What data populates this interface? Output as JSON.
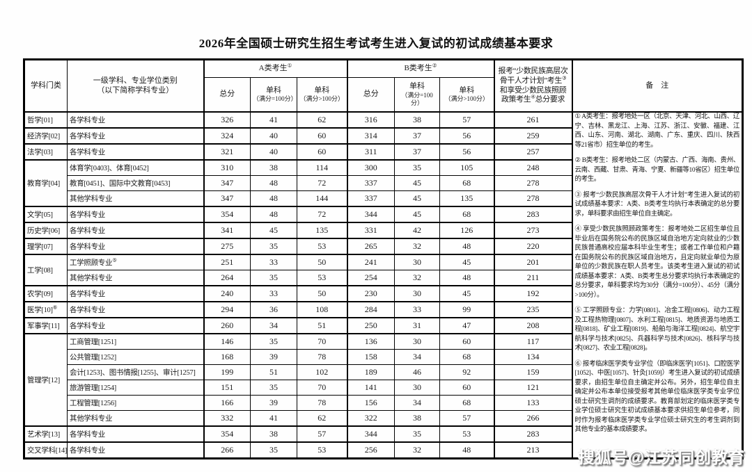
{
  "title": "2026年全国硕士研究生招生考试考生进入复试的初试成绩基本要求",
  "watermark": "搜狐号@江苏同创教育",
  "table": {
    "headers": {
      "category": "学科门类",
      "discipline_l1": "一级学科、专业学位类别",
      "discipline_l2": "（以下简称学科专业）",
      "group_a": "A类考生",
      "group_a_sup": "①",
      "group_b": "B类考生",
      "group_b_sup": "②",
      "total": "总分",
      "single": "单科",
      "single_eq_sub": "（满分=100分）",
      "single_gt_sub": "（满分>100分）",
      "minority_p1": "报考“少数民族高层次骨干人才计划”考生",
      "minority_s1": "③",
      "minority_p2": "和享受少数民族照顾政策考生",
      "minority_s2": "④",
      "minority_p3": "总分要求",
      "remarks": "备　注"
    },
    "groups": [
      {
        "category": "哲学[01]",
        "rows": [
          {
            "major": "各学科专业",
            "values": [
              326,
              41,
              62,
              316,
              38,
              57,
              261
            ]
          }
        ]
      },
      {
        "category": "经济学[02]",
        "rows": [
          {
            "major": "各学科专业",
            "values": [
              324,
              40,
              60,
              314,
              37,
              56,
              259
            ]
          }
        ]
      },
      {
        "category": "法学[03]",
        "rows": [
          {
            "major": "各学科专业",
            "values": [
              321,
              40,
              60,
              311,
              37,
              56,
              257
            ]
          }
        ]
      },
      {
        "category": "教育学[04]",
        "rows": [
          {
            "major": "体育学[0403]、体育[0452]",
            "values": [
              310,
              38,
              114,
              300,
              35,
              105,
              248
            ]
          },
          {
            "major": "教育[0451]、国际中文教育[0453]",
            "values": [
              347,
              48,
              72,
              337,
              45,
              68,
              278
            ]
          },
          {
            "major": "其他学科专业",
            "values": [
              347,
              48,
              144,
              337,
              45,
              135,
              278
            ]
          }
        ]
      },
      {
        "category": "文学[05]",
        "rows": [
          {
            "major": "各学科专业",
            "values": [
              354,
              48,
              72,
              344,
              45,
              68,
              283
            ]
          }
        ]
      },
      {
        "category": "历史学[06]",
        "rows": [
          {
            "major": "各学科专业",
            "values": [
              341,
              45,
              135,
              331,
              42,
              126,
              273
            ]
          }
        ]
      },
      {
        "category": "理学[07]",
        "rows": [
          {
            "major": "各学科专业",
            "values": [
              275,
              35,
              53,
              265,
              32,
              48,
              220
            ]
          }
        ]
      },
      {
        "category": "工学[08]",
        "rows": [
          {
            "major": "工学照顾专业",
            "major_sup": "⑤",
            "values": [
              251,
              33,
              50,
              241,
              30,
              45,
              201
            ]
          },
          {
            "major": "其他学科专业",
            "values": [
              264,
              35,
              53,
              254,
              32,
              48,
              211
            ]
          }
        ]
      },
      {
        "category": "农学[09]",
        "rows": [
          {
            "major": "各学科专业",
            "values": [
              240,
              33,
              50,
              230,
              30,
              45,
              192
            ]
          }
        ]
      },
      {
        "category": "医学[10]",
        "category_sup": "⑥",
        "rows": [
          {
            "major": "各学科专业",
            "values": [
              294,
              36,
              108,
              284,
              33,
              99,
              235
            ]
          }
        ]
      },
      {
        "category": "军事学[11]",
        "rows": [
          {
            "major": "各学科专业",
            "values": [
              260,
              34,
              51,
              250,
              31,
              47,
              208
            ]
          }
        ]
      },
      {
        "category": "管理学[12]",
        "rows": [
          {
            "major": "工商管理[1251]",
            "values": [
              146,
              35,
              70,
              136,
              30,
              60,
              117
            ]
          },
          {
            "major": "公共管理[1252]",
            "values": [
              168,
              39,
              78,
              158,
              34,
              68,
              134
            ]
          },
          {
            "major": "会计[1253]、图书情报[1255]、审计[1257]",
            "values": [
              199,
              51,
              102,
              189,
              46,
              92,
              159
            ]
          },
          {
            "major": "旅游管理[1254]",
            "values": [
              151,
              35,
              70,
              141,
              30,
              60,
              121
            ]
          },
          {
            "major": "工程管理[1256]",
            "values": [
              166,
              39,
              78,
              156,
              34,
              68,
              133
            ]
          },
          {
            "major": "其他学科专业",
            "values": [
              332,
              41,
              62,
              322,
              38,
              57,
              266
            ]
          }
        ]
      },
      {
        "category": "艺术学[13]",
        "rows": [
          {
            "major": "各学科专业",
            "values": [
              354,
              38,
              57,
              344,
              35,
              53,
              283
            ]
          }
        ]
      },
      {
        "category": "交叉学科[14]",
        "rows": [
          {
            "major": "各学科专业",
            "values": [
              266,
              35,
              53,
              256,
              32,
              48,
              213
            ]
          }
        ]
      }
    ],
    "notes": [
      {
        "num": "①",
        "text": "A类考生：报考地处一区（北京、天津、河北、山西、辽宁、吉林、黑龙江、上海、江苏、浙江、安徽、福建、江西、山东、河南、湖北、湖南、广东、重庆、四川、陕西等21省市）招生单位的考生。"
      },
      {
        "num": "②",
        "text": "B类考生：报考地处二区（内蒙古、广西、海南、贵州、云南、西藏、甘肃、青海、宁夏、新疆等10省区）招生单位的考生。"
      },
      {
        "num": "③",
        "text": "报考“少数民族高层次骨干人才计划”考生进入复试的初试成绩基本要求：A类、B类考生均执行本表确定的总分要求，单科要求由招生单位自主确定。"
      },
      {
        "num": "④",
        "text": "享受少数民族照顾政策考生：报考地处二区招生单位且毕业后在国务院公布的民族区域自治地方定向就业的少数民族普通高校应届本科毕业生考生；或者工作单位和户籍在国务院公布的民族区域自治地方，且定向就业单位为原单位的少数民族在职人员考生。该类考生进入复试的初试成绩基本要求：A类、B类考生总分要求均执行本表确定的总分要求，单科要求均为30分（满分=100分）、45分（满分>100分）。"
      },
      {
        "num": "⑤",
        "text": "工学照顾专业：力学[0801]、冶金工程[0806]、动力工程及工程热物理[0807]、水利工程[0815]、地质资源与地质工程[0818]、矿业工程[0819]、船舶与海洋工程[0824]、航空宇航科学与技术[0825]、兵器科学与技术[0826]、核科学与技术[0827]、农业工程[0828]。"
      },
      {
        "num": "⑥",
        "text": "报考临床医学类专业学位（即临床医学[1051]、口腔医学[1052]、中医[1057]、针灸[1059]）考生进入复试的初试成绩要求，由招生单位自主确定并公布。另外，招生单位自主确定并公布本单位接受报考其他单位临床医学类专业学位硕士研究生调剂的成绩要求。教育部划定的临床医学类专业学位硕士研究生初试成绩基本要求供招生单位参考，同时作为报考临床医学类专业学位硕士研究生的考生调剂到其他专业的基本成绩要求。"
      }
    ]
  }
}
